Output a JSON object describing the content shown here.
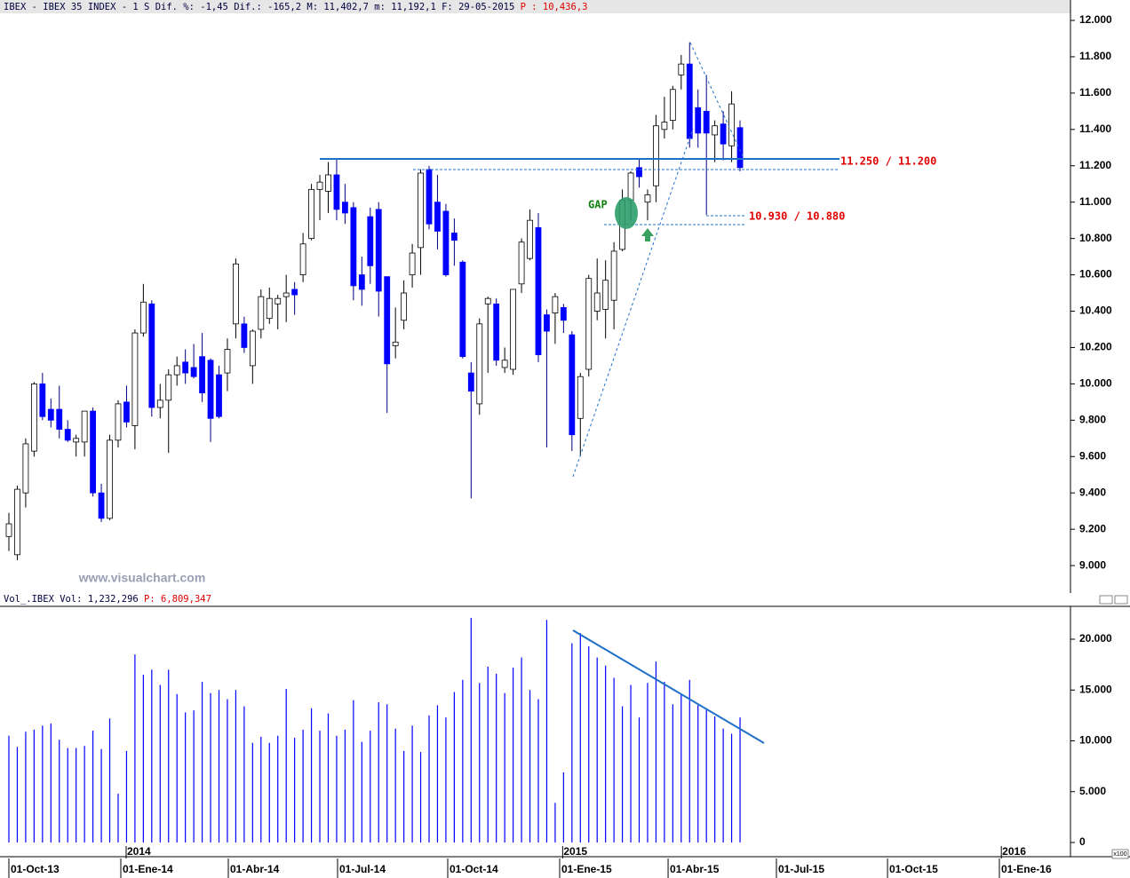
{
  "chart_data": [
    {
      "type": "candlestick",
      "header": {
        "symbol": "IBEX - IBEX 35 INDEX - 1 S",
        "stats": "Dif. %: -1,45 Dif.: -165,2 M: 11,402,7 m: 11,192,1 F: 29-05-2015",
        "prev": "P : 10,436,3"
      },
      "watermark": "www.visualchart.com",
      "annotations": {
        "resistance": "11.250 / 11.200",
        "support": "10.930 / 10.880",
        "gap": "GAP"
      },
      "up_color": "#ffffff",
      "down_color": "#0000ff",
      "open": [
        9160,
        9060,
        9400,
        9630,
        10000,
        9860,
        9860,
        9750,
        9680,
        9680,
        9850,
        9400,
        9260,
        9690,
        9900,
        9770,
        10280,
        10440,
        9870,
        9910,
        10050,
        10120,
        10090,
        10150,
        10130,
        10050,
        10060,
        10330,
        10330,
        10100,
        10300,
        10360,
        10440,
        10480,
        10520,
        10600,
        10800,
        11070,
        11060,
        11150,
        11000,
        10970,
        10600,
        10920,
        10960,
        10590,
        10210,
        10350,
        10600,
        10750,
        11180,
        11000,
        10950,
        10830,
        10670,
        10060,
        9890,
        10440,
        10440,
        10090,
        10080,
        10550,
        10690,
        10860,
        10380,
        10390,
        10420,
        10270,
        9810,
        10080,
        10400,
        10410,
        10460,
        10740,
        11010,
        11190,
        11000,
        11090,
        11400,
        11450,
        11700,
        11760,
        11520,
        11500,
        11370,
        11430,
        11310,
        11410
      ],
      "high": [
        9290,
        9440,
        9700,
        10010,
        10060,
        9920,
        9990,
        9800,
        9720,
        9850,
        9870,
        9450,
        9720,
        9910,
        9990,
        10300,
        10550,
        10460,
        10000,
        10080,
        10150,
        10190,
        10220,
        10280,
        10140,
        10100,
        10250,
        10690,
        10370,
        10300,
        10520,
        10530,
        10490,
        10600,
        10560,
        10830,
        11100,
        11150,
        11220,
        11240,
        11100,
        11000,
        10700,
        10970,
        11000,
        10590,
        10420,
        10570,
        10770,
        11180,
        11200,
        11150,
        10990,
        10910,
        10680,
        10120,
        10360,
        10480,
        10470,
        10200,
        10520,
        10800,
        10960,
        10940,
        10410,
        10500,
        10440,
        10290,
        10060,
        10600,
        10690,
        10680,
        10780,
        11070,
        11170,
        11240,
        11070,
        11480,
        11580,
        11640,
        11810,
        11880,
        11620,
        11700,
        11450,
        11500,
        11610,
        11450
      ],
      "low": [
        9080,
        9030,
        9320,
        9600,
        9800,
        9760,
        9700,
        9680,
        9600,
        9600,
        9380,
        9240,
        9250,
        9650,
        9760,
        9640,
        10260,
        9820,
        9810,
        9620,
        9990,
        10000,
        10030,
        9900,
        9680,
        9810,
        9960,
        10250,
        10170,
        10000,
        10250,
        10330,
        10300,
        10340,
        10380,
        10560,
        10790,
        10900,
        10940,
        10900,
        10880,
        10460,
        10430,
        10550,
        10370,
        9840,
        10140,
        10300,
        10530,
        10600,
        10850,
        10740,
        10590,
        10650,
        10140,
        9370,
        9830,
        10060,
        10100,
        10060,
        10050,
        10500,
        10680,
        10120,
        9650,
        10220,
        10280,
        9630,
        9600,
        10040,
        10350,
        10250,
        10300,
        10730,
        10900,
        11080,
        10900,
        11000,
        11350,
        11400,
        11620,
        11300,
        11300,
        10930,
        11220,
        11230,
        11220,
        11170
      ],
      "close": [
        9230,
        9420,
        9670,
        10000,
        9820,
        9800,
        9750,
        9690,
        9700,
        9850,
        9400,
        9260,
        9690,
        9890,
        9790,
        10280,
        10450,
        9870,
        9910,
        10050,
        10100,
        10060,
        10040,
        9950,
        9810,
        9820,
        10190,
        10660,
        10200,
        10290,
        10480,
        10470,
        10470,
        10500,
        10490,
        10770,
        11070,
        11110,
        11150,
        10960,
        10940,
        10540,
        10520,
        10650,
        10510,
        10110,
        10230,
        10500,
        10720,
        11160,
        10880,
        10840,
        10600,
        10790,
        10150,
        9960,
        10330,
        10470,
        10130,
        10130,
        10520,
        10780,
        10900,
        10160,
        10290,
        10480,
        10350,
        9720,
        10040,
        10580,
        10500,
        10570,
        10730,
        11010,
        11160,
        11140,
        11040,
        11420,
        11440,
        11620,
        11760,
        11350,
        11380,
        11380,
        11420,
        11320,
        11540,
        11190
      ],
      "xlim": [
        -1.057,
        126.32
      ],
      "xticks": [
        {
          "value": 0,
          "label": "01-Oct-13"
        },
        {
          "value": 13.32,
          "label": "01-Ene-14"
        },
        {
          "value": 26.11,
          "label": "01-Abr-14"
        },
        {
          "value": 39.11,
          "label": "01-Jul-14"
        },
        {
          "value": 52.22,
          "label": "01-Oct-14"
        },
        {
          "value": 65.54,
          "label": "01-Ene-15"
        },
        {
          "value": 78.44,
          "label": "01-Abr-15"
        },
        {
          "value": 91.33,
          "label": "01-Jul-15"
        },
        {
          "value": 104.55,
          "label": "01-Oct-15"
        },
        {
          "value": 117.86,
          "label": "01-Ene-16"
        }
      ],
      "year_marks": [
        {
          "value": 14.06,
          "label": "2014"
        },
        {
          "value": 66.0,
          "label": "2015"
        },
        {
          "value": 118.2,
          "label": "2016"
        }
      ],
      "ylim": [
        8849,
        12039
      ],
      "yticks": [
        {
          "value": 9000,
          "label": "9.000"
        },
        {
          "value": 9200,
          "label": "9.200"
        },
        {
          "value": 9400,
          "label": "9.400"
        },
        {
          "value": 9600,
          "label": "9.600"
        },
        {
          "value": 9800,
          "label": "9.800"
        },
        {
          "value": 10000,
          "label": "10.000"
        },
        {
          "value": 10200,
          "label": "10.200"
        },
        {
          "value": 10400,
          "label": "10.400"
        },
        {
          "value": 10600,
          "label": "10.600"
        },
        {
          "value": 10800,
          "label": "10.800"
        },
        {
          "value": 11000,
          "label": "11.000"
        },
        {
          "value": 11200,
          "label": "11.200"
        },
        {
          "value": 11400,
          "label": "11.400"
        },
        {
          "value": 11600,
          "label": "11.600"
        },
        {
          "value": 11800,
          "label": "11.800"
        },
        {
          "value": 12000,
          "label": "12.000"
        }
      ]
    },
    {
      "type": "bar",
      "header": {
        "symbol": "Vol_.IBEX Vol: 1,232,296",
        "prev": "P: 6,809,347"
      },
      "unit_label": "x100",
      "color": "#0000ff",
      "values": [
        10500,
        9400,
        10900,
        11100,
        11500,
        11700,
        10100,
        9300,
        9300,
        9500,
        11000,
        9200,
        12200,
        4800,
        9000,
        18500,
        16500,
        17000,
        15500,
        17000,
        14600,
        12800,
        13000,
        15800,
        14700,
        15000,
        14100,
        15000,
        13400,
        9800,
        10400,
        9800,
        10500,
        15100,
        10300,
        11100,
        13200,
        11000,
        12700,
        10500,
        11100,
        14000,
        9900,
        11000,
        13800,
        13600,
        11200,
        9000,
        11500,
        8900,
        12500,
        13500,
        12300,
        14800,
        16000,
        22100,
        15700,
        17300,
        16600,
        14700,
        17200,
        18200,
        15000,
        14100,
        21900,
        3900,
        6900,
        19600,
        20600,
        19300,
        18200,
        17400,
        16200,
        13400,
        15500,
        12300,
        15700,
        17800,
        15800,
        13600,
        14600,
        16000,
        13500,
        13100,
        12400,
        11200,
        10700,
        12300
      ],
      "ylim": [
        -961,
        23231
      ],
      "yticks": [
        0,
        {
          "value": 5000,
          "label": "5.000"
        },
        {
          "value": 10000,
          "label": "10.000"
        },
        {
          "value": 15000,
          "label": "15.000"
        },
        {
          "value": 20000,
          "label": "20.000"
        }
      ]
    }
  ]
}
